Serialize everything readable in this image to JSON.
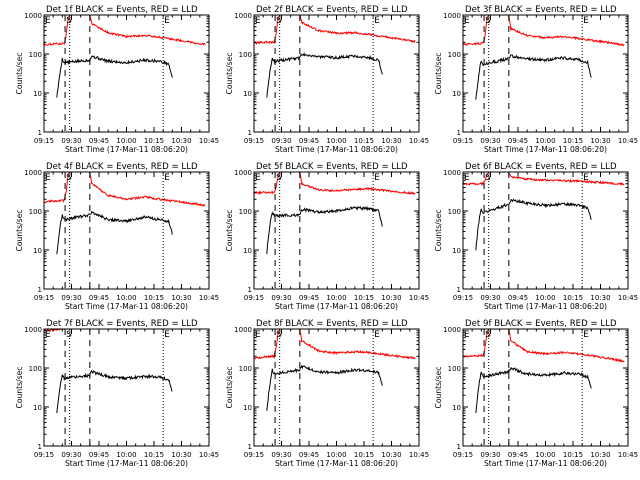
{
  "chart_data": [
    {
      "type": "line",
      "detector": "1f",
      "title": "Det 1f BLACK = Events, RED = LLD",
      "xlabel": "Start Time (17-Mar-11 08:06:20)",
      "ylabel": "Counts/sec",
      "yscale": "log",
      "ylim": [
        1,
        1000
      ],
      "xlim_min": [
        555,
        645
      ],
      "x_ticks": [
        "09:15",
        "09:30",
        "09:45",
        "10:00",
        "10:15",
        "10:30",
        "10:45"
      ],
      "y_ticks": [
        "1",
        "10",
        "100",
        "1000"
      ],
      "markers": {
        "e1": "E",
        "s": "S",
        "e2": "E"
      },
      "marker_times_min": {
        "e1": 555,
        "s": 566.5,
        "gap_start": 569,
        "gap_end": 580,
        "e2": 620
      },
      "series": [
        {
          "name": "Events",
          "color": "#000000",
          "t_min": [
            562,
            563,
            564,
            565,
            566,
            580,
            581,
            590,
            600,
            610,
            618,
            623,
            625
          ],
          "values": [
            8,
            18,
            40,
            75,
            60,
            70,
            88,
            65,
            60,
            70,
            65,
            55,
            25
          ]
        },
        {
          "name": "LLD",
          "color": "#ff0000",
          "t_min": [
            555,
            560,
            566,
            567,
            568,
            569,
            580,
            581,
            590,
            600,
            610,
            618,
            630,
            643
          ],
          "values": [
            175,
            180,
            185,
            300,
            700,
            1000,
            1000,
            600,
            350,
            280,
            300,
            270,
            220,
            175
          ]
        }
      ]
    },
    {
      "type": "line",
      "detector": "2f",
      "title": "Det 2f BLACK = Events, RED = LLD",
      "xlabel": "Start Time (17-Mar-11 08:06:20)",
      "ylabel": "Counts/sec",
      "yscale": "log",
      "ylim": [
        1,
        1000
      ],
      "xlim_min": [
        555,
        645
      ],
      "x_ticks": [
        "09:15",
        "09:30",
        "09:45",
        "10:00",
        "10:15",
        "10:30",
        "10:45"
      ],
      "y_ticks": [
        "1",
        "10",
        "100",
        "1000"
      ],
      "markers": {
        "e1": "E",
        "s": "S",
        "e2": "E"
      },
      "marker_times_min": {
        "e1": 555,
        "s": 566.5,
        "gap_start": 569,
        "gap_end": 580,
        "e2": 620
      },
      "series": [
        {
          "name": "Events",
          "color": "#000000",
          "t_min": [
            562,
            563,
            564,
            565,
            566,
            580,
            581,
            590,
            600,
            610,
            618,
            623,
            625
          ],
          "values": [
            8,
            20,
            45,
            80,
            65,
            80,
            100,
            85,
            80,
            90,
            80,
            70,
            30
          ]
        },
        {
          "name": "LLD",
          "color": "#ff0000",
          "t_min": [
            555,
            560,
            566,
            567,
            568,
            569,
            580,
            581,
            590,
            600,
            610,
            618,
            630,
            643
          ],
          "values": [
            190,
            200,
            200,
            320,
            750,
            1000,
            1000,
            650,
            400,
            340,
            350,
            320,
            260,
            210
          ]
        }
      ]
    },
    {
      "type": "line",
      "detector": "3f",
      "title": "Det 3f BLACK = Events, RED = LLD",
      "xlabel": "Start Time (17-Mar-11 08:06:20)",
      "ylabel": "Counts/sec",
      "yscale": "log",
      "ylim": [
        1,
        1000
      ],
      "xlim_min": [
        555,
        645
      ],
      "x_ticks": [
        "09:15",
        "09:30",
        "09:45",
        "10:00",
        "10:15",
        "10:30",
        "10:45"
      ],
      "y_ticks": [
        "1",
        "10",
        "100",
        "1000"
      ],
      "markers": {
        "e1": "E",
        "s": "S",
        "e2": "E"
      },
      "marker_times_min": {
        "e1": 555,
        "s": 566.5,
        "gap_start": 569,
        "gap_end": 580,
        "e2": 620
      },
      "series": [
        {
          "name": "Events",
          "color": "#000000",
          "t_min": [
            562,
            563,
            564,
            565,
            566,
            580,
            581,
            590,
            600,
            610,
            618,
            623,
            625
          ],
          "values": [
            7,
            18,
            40,
            70,
            55,
            75,
            90,
            75,
            70,
            80,
            72,
            60,
            25
          ]
        },
        {
          "name": "LLD",
          "color": "#ff0000",
          "t_min": [
            555,
            560,
            566,
            567,
            568,
            569,
            580,
            581,
            590,
            600,
            610,
            618,
            630,
            643
          ],
          "values": [
            175,
            180,
            190,
            300,
            700,
            1000,
            1000,
            450,
            300,
            260,
            280,
            250,
            210,
            170
          ]
        }
      ]
    },
    {
      "type": "line",
      "detector": "4f",
      "title": "Det 4f BLACK = Events, RED = LLD",
      "xlabel": "Start Time (17-Mar-11 08:06:20)",
      "ylabel": "Counts/sec",
      "yscale": "log",
      "ylim": [
        1,
        1000
      ],
      "xlim_min": [
        555,
        645
      ],
      "x_ticks": [
        "09:15",
        "09:30",
        "09:45",
        "10:00",
        "10:15",
        "10:30",
        "10:45"
      ],
      "y_ticks": [
        "1",
        "10",
        "100",
        "1000"
      ],
      "markers": {
        "e1": "E",
        "s": "S",
        "e2": "E"
      },
      "marker_times_min": {
        "e1": 555,
        "s": 566.5,
        "gap_start": 569,
        "gap_end": 580,
        "e2": 620
      },
      "series": [
        {
          "name": "Events",
          "color": "#000000",
          "t_min": [
            562,
            563,
            564,
            565,
            566,
            580,
            581,
            590,
            600,
            610,
            618,
            623,
            625
          ],
          "values": [
            8,
            20,
            45,
            80,
            60,
            80,
            95,
            60,
            55,
            70,
            60,
            55,
            25
          ]
        },
        {
          "name": "LLD",
          "color": "#ff0000",
          "t_min": [
            555,
            560,
            566,
            567,
            568,
            569,
            580,
            581,
            590,
            600,
            610,
            618,
            630,
            643
          ],
          "values": [
            170,
            180,
            185,
            300,
            700,
            1000,
            1000,
            500,
            250,
            200,
            230,
            200,
            170,
            140
          ]
        }
      ]
    },
    {
      "type": "line",
      "detector": "5f",
      "title": "Det 5f BLACK = Events, RED = LLD",
      "xlabel": "Start Time (17-Mar-11 08:06:20)",
      "ylabel": "Counts/sec",
      "yscale": "log",
      "ylim": [
        1,
        1000
      ],
      "xlim_min": [
        555,
        645
      ],
      "x_ticks": [
        "09:15",
        "09:30",
        "09:45",
        "10:00",
        "10:15",
        "10:30",
        "10:45"
      ],
      "y_ticks": [
        "1",
        "10",
        "100",
        "1000"
      ],
      "markers": {
        "e1": "E",
        "s": "S",
        "e2": "E"
      },
      "marker_times_min": {
        "e1": 555,
        "s": 566.5,
        "gap_start": 569,
        "gap_end": 580,
        "e2": 620
      },
      "series": [
        {
          "name": "Events",
          "color": "#000000",
          "t_min": [
            562,
            563,
            564,
            565,
            566,
            580,
            581,
            590,
            600,
            610,
            618,
            623,
            625
          ],
          "values": [
            8,
            25,
            55,
            95,
            75,
            80,
            110,
            95,
            100,
            120,
            115,
            100,
            40
          ]
        },
        {
          "name": "LLD",
          "color": "#ff0000",
          "t_min": [
            555,
            560,
            566,
            567,
            568,
            569,
            580,
            581,
            590,
            600,
            610,
            618,
            630,
            643
          ],
          "values": [
            290,
            300,
            300,
            400,
            700,
            1000,
            1000,
            500,
            350,
            330,
            360,
            370,
            320,
            280
          ]
        }
      ]
    },
    {
      "type": "line",
      "detector": "6f",
      "title": "Det 6f BLACK = Events, RED = LLD",
      "xlabel": "Start Time (17-Mar-11 08:06:20)",
      "ylabel": "Counts/sec",
      "yscale": "log",
      "ylim": [
        1,
        1000
      ],
      "xlim_min": [
        555,
        645
      ],
      "x_ticks": [
        "09:15",
        "09:30",
        "09:45",
        "10:00",
        "10:15",
        "10:30",
        "10:45"
      ],
      "y_ticks": [
        "1",
        "10",
        "100",
        "1000"
      ],
      "markers": {
        "e1": "E",
        "s": "S",
        "e2": "E"
      },
      "marker_times_min": {
        "e1": 555,
        "s": 566.5,
        "gap_start": 569,
        "gap_end": 580,
        "e2": 620
      },
      "series": [
        {
          "name": "Events",
          "color": "#000000",
          "t_min": [
            562,
            563,
            564,
            565,
            566,
            580,
            581,
            590,
            600,
            610,
            618,
            623,
            625
          ],
          "values": [
            10,
            30,
            70,
            110,
            90,
            150,
            190,
            160,
            140,
            150,
            140,
            120,
            60
          ]
        },
        {
          "name": "LLD",
          "color": "#ff0000",
          "t_min": [
            555,
            560,
            566,
            567,
            568,
            569,
            580,
            581,
            590,
            600,
            610,
            618,
            630,
            643
          ],
          "values": [
            500,
            490,
            500,
            600,
            800,
            1000,
            1000,
            750,
            650,
            620,
            600,
            580,
            540,
            480
          ]
        }
      ]
    },
    {
      "type": "line",
      "detector": "7f",
      "title": "Det 7f BLACK = Events, RED = LLD",
      "xlabel": "Start Time (17-Mar-11 08:06:20)",
      "ylabel": "Counts/sec",
      "yscale": "log",
      "ylim": [
        1,
        1000
      ],
      "xlim_min": [
        555,
        645
      ],
      "x_ticks": [
        "09:15",
        "09:30",
        "09:45",
        "10:00",
        "10:15",
        "10:30",
        "10:45"
      ],
      "y_ticks": [
        "1",
        "10",
        "100",
        "1000"
      ],
      "markers": {
        "e1": "E",
        "s": "S",
        "e2": "E"
      },
      "marker_times_min": {
        "e1": 555,
        "s": 566.5,
        "gap_start": 569,
        "gap_end": 580,
        "e2": 620
      },
      "series": [
        {
          "name": "Events",
          "color": "#000000",
          "t_min": [
            562,
            563,
            564,
            565,
            566,
            580,
            581,
            590,
            600,
            610,
            618,
            623,
            625
          ],
          "values": [
            7,
            18,
            40,
            70,
            55,
            65,
            80,
            60,
            55,
            60,
            60,
            50,
            25
          ]
        },
        {
          "name": "LLD",
          "color": "#ff0000",
          "t_min": [
            555,
            560,
            566,
            567,
            568,
            569,
            580,
            581,
            590,
            600,
            610,
            618,
            630,
            643
          ],
          "values": [
            900,
            950,
            1000,
            1000,
            1000,
            1000,
            1000,
            1000,
            1000,
            1000,
            1000,
            1000,
            1000,
            1000
          ]
        }
      ]
    },
    {
      "type": "line",
      "detector": "8f",
      "title": "Det 8f BLACK = Events, RED = LLD",
      "xlabel": "Start Time (17-Mar-11 08:06:20)",
      "ylabel": "Counts/sec",
      "yscale": "log",
      "ylim": [
        1,
        1000
      ],
      "xlim_min": [
        555,
        645
      ],
      "x_ticks": [
        "09:15",
        "09:30",
        "09:45",
        "10:00",
        "10:15",
        "10:30",
        "10:45"
      ],
      "y_ticks": [
        "1",
        "10",
        "100",
        "1000"
      ],
      "markers": {
        "e1": "E",
        "s": "S",
        "e2": "E"
      },
      "marker_times_min": {
        "e1": 555,
        "s": 566.5,
        "gap_start": 569,
        "gap_end": 580,
        "e2": 620
      },
      "series": [
        {
          "name": "Events",
          "color": "#000000",
          "t_min": [
            562,
            563,
            564,
            565,
            566,
            580,
            581,
            590,
            600,
            610,
            618,
            623,
            625
          ],
          "values": [
            8,
            22,
            50,
            90,
            70,
            90,
            110,
            80,
            75,
            90,
            85,
            75,
            35
          ]
        },
        {
          "name": "LLD",
          "color": "#ff0000",
          "t_min": [
            555,
            560,
            566,
            567,
            568,
            569,
            580,
            581,
            590,
            600,
            610,
            618,
            630,
            643
          ],
          "values": [
            180,
            190,
            200,
            320,
            700,
            1000,
            1000,
            500,
            280,
            240,
            260,
            250,
            210,
            180
          ]
        }
      ]
    },
    {
      "type": "line",
      "detector": "9f",
      "title": "Det 9f BLACK = Events, RED = LLD",
      "xlabel": "Start Time (17-Mar-11 08:06:20)",
      "ylabel": "Counts/sec",
      "yscale": "log",
      "ylim": [
        1,
        1000
      ],
      "xlim_min": [
        555,
        645
      ],
      "x_ticks": [
        "09:15",
        "09:30",
        "09:45",
        "10:00",
        "10:15",
        "10:30",
        "10:45"
      ],
      "y_ticks": [
        "1",
        "10",
        "100",
        "1000"
      ],
      "markers": {
        "e1": "E",
        "s": "S",
        "e2": "E"
      },
      "marker_times_min": {
        "e1": 555,
        "s": 566.5,
        "gap_start": 569,
        "gap_end": 580,
        "e2": 620
      },
      "series": [
        {
          "name": "Events",
          "color": "#000000",
          "t_min": [
            562,
            563,
            564,
            565,
            566,
            580,
            581,
            590,
            600,
            610,
            618,
            623,
            625
          ],
          "values": [
            7,
            20,
            45,
            80,
            60,
            80,
            100,
            70,
            65,
            75,
            70,
            60,
            30
          ]
        },
        {
          "name": "LLD",
          "color": "#ff0000",
          "t_min": [
            555,
            560,
            566,
            567,
            568,
            569,
            580,
            581,
            590,
            600,
            610,
            618,
            630,
            643
          ],
          "values": [
            200,
            205,
            210,
            330,
            700,
            1000,
            1000,
            500,
            260,
            230,
            250,
            230,
            190,
            150
          ]
        }
      ]
    }
  ]
}
